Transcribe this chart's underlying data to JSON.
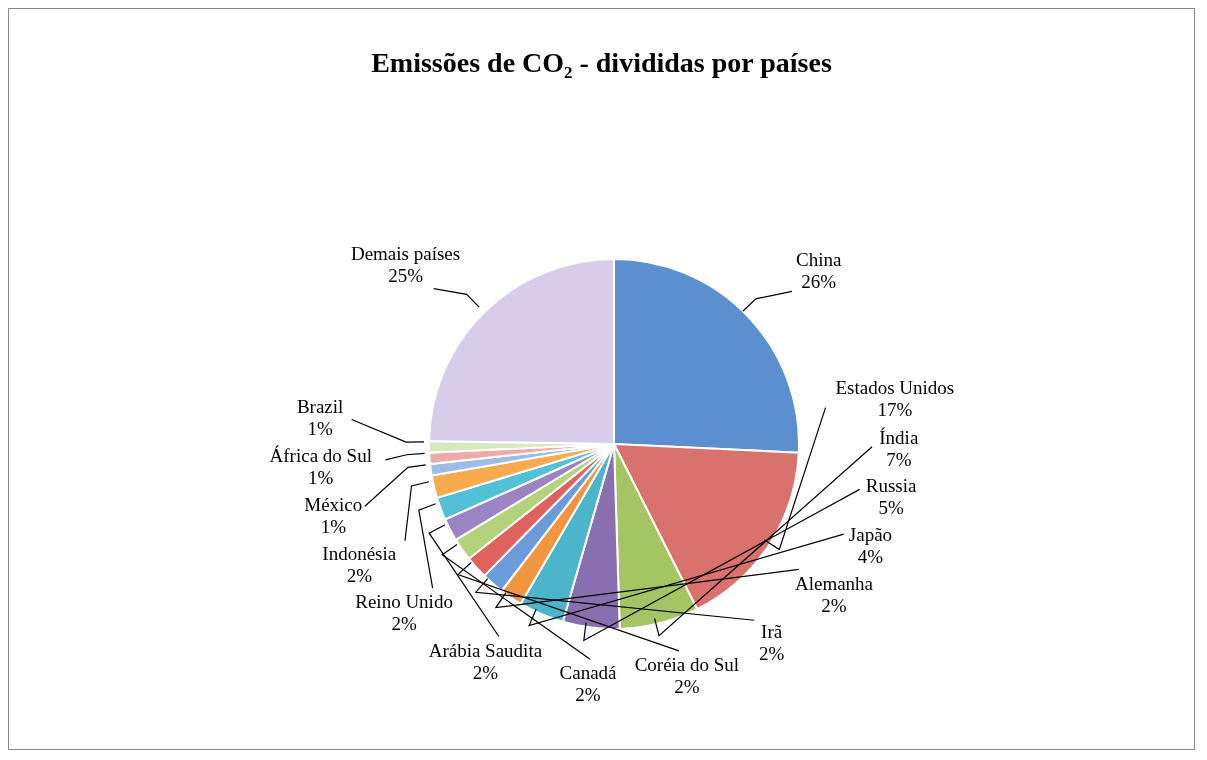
{
  "chart_data": {
    "type": "pie",
    "title": "Emissões de CO₂ - divididas por países",
    "categories": [
      "China",
      "Estados Unidos",
      "Índia",
      "Russia",
      "Japão",
      "Alemanha",
      "Irã",
      "Coréia do Sul",
      "Canadá",
      "Arábia Saudita",
      "Reino Unido",
      "Indonésia",
      "México",
      "África do Sul",
      "Brazil",
      "Demais países"
    ],
    "values": [
      26,
      17,
      7,
      5,
      4,
      2,
      2,
      2,
      2,
      2,
      2,
      2,
      1,
      1,
      1,
      25
    ],
    "value_labels": [
      "26%",
      "17%",
      "7%",
      "5%",
      "4%",
      "2%",
      "2%",
      "2%",
      "2%",
      "2%",
      "2%",
      "2%",
      "1%",
      "1%",
      "1%",
      "25%"
    ],
    "colors": [
      "#5b8fd0",
      "#d9716c",
      "#a5c464",
      "#8a6fb0",
      "#4cb4cb",
      "#f0963e",
      "#6b9bd8",
      "#e0625e",
      "#b3d27c",
      "#9b84c2",
      "#52c1d8",
      "#f8aa4e",
      "#9fbce6",
      "#eeaaa8",
      "#d8eabb",
      "#d7cdea"
    ]
  }
}
